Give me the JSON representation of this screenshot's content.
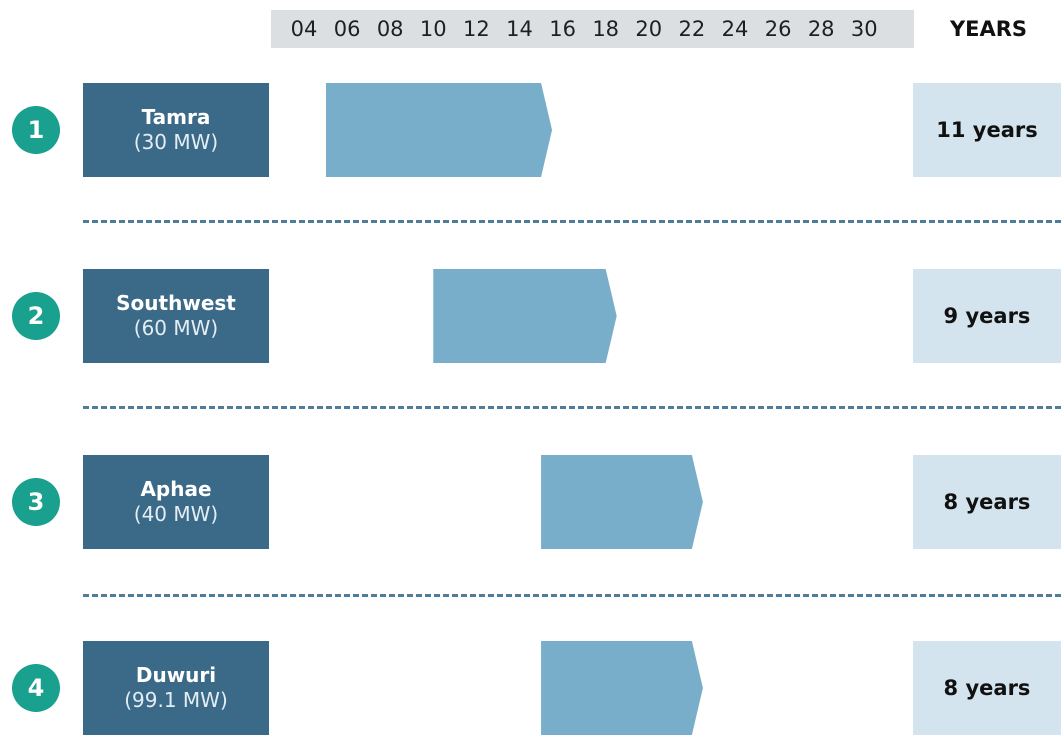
{
  "chart_data": {
    "type": "bar",
    "subtype": "gantt-timeline",
    "ticks": [
      "04",
      "06",
      "08",
      "10",
      "12",
      "14",
      "16",
      "18",
      "20",
      "22",
      "24",
      "26",
      "28",
      "30"
    ],
    "duration_header": "YEARS",
    "rows": [
      {
        "number": "1",
        "name": "Tamra",
        "capacity": "(30 MW)",
        "start": 2005,
        "end": 2015,
        "duration": "11 years"
      },
      {
        "number": "2",
        "name": "Southwest",
        "capacity": "(60 MW)",
        "start": 2010,
        "end": 2018,
        "duration": "9 years"
      },
      {
        "number": "3",
        "name": "Aphae",
        "capacity": "(40 MW)",
        "start": 2015,
        "end": 2022,
        "duration": "8 years"
      },
      {
        "number": "4",
        "name": "Duwuri",
        "capacity": "(99.1 MW)",
        "start": 2015,
        "end": 2022,
        "duration": "8 years"
      }
    ],
    "colors": {
      "project_box": "#3b6a88",
      "timeline_bar": "#79aecb",
      "duration_box": "#d3e4ee",
      "badge": "#19a08e",
      "axis_band": "#dcdfe2"
    }
  }
}
